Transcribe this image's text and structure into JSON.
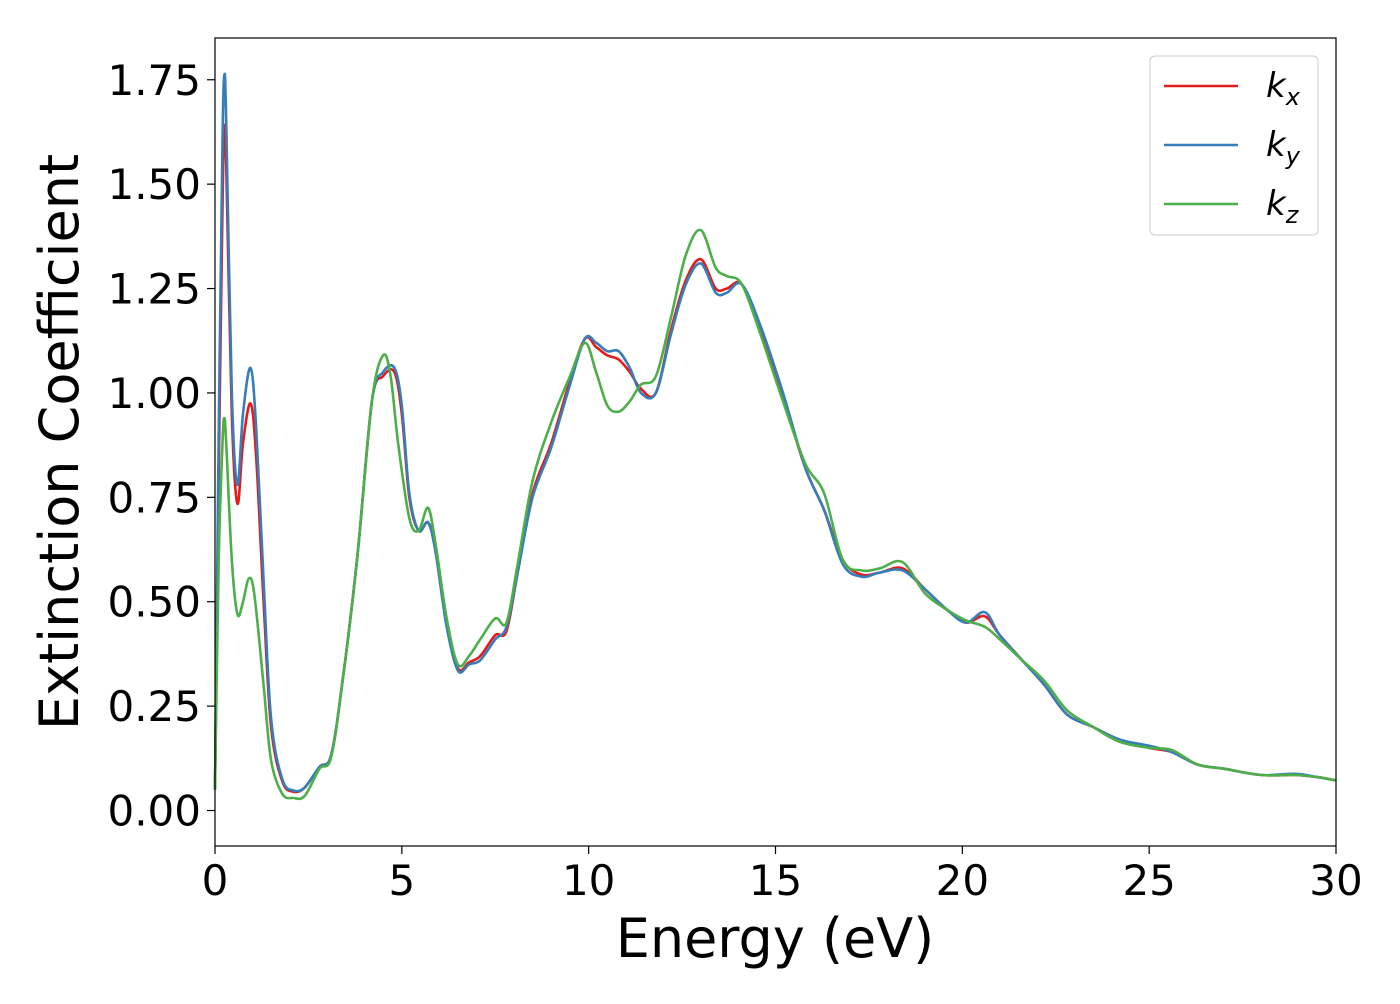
{
  "chart_data": {
    "type": "line",
    "title": "",
    "xlabel": "Energy (eV)",
    "ylabel": "Extinction Coefficient",
    "xlim": [
      0,
      30
    ],
    "ylim": [
      -0.085,
      1.85
    ],
    "x_ticks": [
      0,
      5,
      10,
      15,
      20,
      25,
      30
    ],
    "x_tick_labels": [
      "0",
      "5",
      "10",
      "15",
      "20",
      "25",
      "30"
    ],
    "y_ticks": [
      0.0,
      0.25,
      0.5,
      0.75,
      1.0,
      1.25,
      1.5,
      1.75
    ],
    "y_tick_labels": [
      "0.00",
      "0.25",
      "0.50",
      "0.75",
      "1.00",
      "1.25",
      "1.50",
      "1.75"
    ],
    "grid": false,
    "legend_position": "top-right",
    "series": [
      {
        "name": "k_x",
        "label_main": "k",
        "label_sub": "x",
        "color": "#e41a1c",
        "points": [
          [
            0,
            0.05
          ],
          [
            0.1,
            0.8
          ],
          [
            0.2,
            1.45
          ],
          [
            0.25,
            1.63
          ],
          [
            0.3,
            1.55
          ],
          [
            0.45,
            0.95
          ],
          [
            0.6,
            0.735
          ],
          [
            0.75,
            0.88
          ],
          [
            0.95,
            0.975
          ],
          [
            1.1,
            0.85
          ],
          [
            1.3,
            0.5
          ],
          [
            1.5,
            0.2
          ],
          [
            1.8,
            0.07
          ],
          [
            2.1,
            0.045
          ],
          [
            2.4,
            0.055
          ],
          [
            2.8,
            0.105
          ],
          [
            3.1,
            0.13
          ],
          [
            3.4,
            0.3
          ],
          [
            3.8,
            0.6
          ],
          [
            4.2,
            0.98
          ],
          [
            4.5,
            1.04
          ],
          [
            4.8,
            1.05
          ],
          [
            5.0,
            0.95
          ],
          [
            5.2,
            0.75
          ],
          [
            5.45,
            0.67
          ],
          [
            5.7,
            0.69
          ],
          [
            5.9,
            0.63
          ],
          [
            6.2,
            0.45
          ],
          [
            6.5,
            0.34
          ],
          [
            6.8,
            0.355
          ],
          [
            7.1,
            0.37
          ],
          [
            7.5,
            0.42
          ],
          [
            7.8,
            0.43
          ],
          [
            8.1,
            0.57
          ],
          [
            8.5,
            0.76
          ],
          [
            9.0,
            0.88
          ],
          [
            9.5,
            1.03
          ],
          [
            9.9,
            1.13
          ],
          [
            10.2,
            1.11
          ],
          [
            10.5,
            1.09
          ],
          [
            10.8,
            1.08
          ],
          [
            11.1,
            1.05
          ],
          [
            11.4,
            1.01
          ],
          [
            11.8,
            1.0
          ],
          [
            12.2,
            1.15
          ],
          [
            12.6,
            1.27
          ],
          [
            13.0,
            1.32
          ],
          [
            13.4,
            1.25
          ],
          [
            13.7,
            1.25
          ],
          [
            14.1,
            1.26
          ],
          [
            14.6,
            1.15
          ],
          [
            15.2,
            0.99
          ],
          [
            15.8,
            0.82
          ],
          [
            16.3,
            0.72
          ],
          [
            16.8,
            0.6
          ],
          [
            17.3,
            0.565
          ],
          [
            17.8,
            0.57
          ],
          [
            18.4,
            0.58
          ],
          [
            19.0,
            0.53
          ],
          [
            19.6,
            0.48
          ],
          [
            20.1,
            0.45
          ],
          [
            20.6,
            0.465
          ],
          [
            21.0,
            0.42
          ],
          [
            21.6,
            0.36
          ],
          [
            22.2,
            0.3
          ],
          [
            22.8,
            0.23
          ],
          [
            23.5,
            0.2
          ],
          [
            24.2,
            0.17
          ],
          [
            25.0,
            0.15
          ],
          [
            25.6,
            0.14
          ],
          [
            26.3,
            0.11
          ],
          [
            27.0,
            0.1
          ],
          [
            28.0,
            0.085
          ],
          [
            28.9,
            0.085
          ],
          [
            29.5,
            0.08
          ],
          [
            30,
            0.072
          ]
        ]
      },
      {
        "name": "k_y",
        "label_main": "k",
        "label_sub": "y",
        "color": "#377eb8",
        "points": [
          [
            0,
            0.05
          ],
          [
            0.1,
            0.9
          ],
          [
            0.2,
            1.6
          ],
          [
            0.25,
            1.76
          ],
          [
            0.3,
            1.65
          ],
          [
            0.45,
            1.0
          ],
          [
            0.6,
            0.78
          ],
          [
            0.75,
            0.95
          ],
          [
            0.95,
            1.06
          ],
          [
            1.1,
            0.92
          ],
          [
            1.3,
            0.55
          ],
          [
            1.5,
            0.22
          ],
          [
            1.8,
            0.075
          ],
          [
            2.1,
            0.048
          ],
          [
            2.4,
            0.055
          ],
          [
            2.8,
            0.105
          ],
          [
            3.1,
            0.13
          ],
          [
            3.4,
            0.3
          ],
          [
            3.8,
            0.6
          ],
          [
            4.2,
            0.98
          ],
          [
            4.5,
            1.05
          ],
          [
            4.8,
            1.06
          ],
          [
            5.0,
            0.97
          ],
          [
            5.2,
            0.76
          ],
          [
            5.45,
            0.67
          ],
          [
            5.7,
            0.69
          ],
          [
            5.9,
            0.62
          ],
          [
            6.2,
            0.44
          ],
          [
            6.5,
            0.335
          ],
          [
            6.8,
            0.35
          ],
          [
            7.1,
            0.36
          ],
          [
            7.5,
            0.41
          ],
          [
            7.8,
            0.44
          ],
          [
            8.1,
            0.57
          ],
          [
            8.5,
            0.75
          ],
          [
            9.0,
            0.87
          ],
          [
            9.5,
            1.02
          ],
          [
            9.9,
            1.13
          ],
          [
            10.2,
            1.12
          ],
          [
            10.5,
            1.1
          ],
          [
            10.8,
            1.1
          ],
          [
            11.1,
            1.06
          ],
          [
            11.4,
            1.0
          ],
          [
            11.8,
            1.0
          ],
          [
            12.2,
            1.14
          ],
          [
            12.6,
            1.26
          ],
          [
            13.0,
            1.31
          ],
          [
            13.4,
            1.24
          ],
          [
            13.7,
            1.24
          ],
          [
            14.1,
            1.26
          ],
          [
            14.6,
            1.16
          ],
          [
            15.2,
            1.0
          ],
          [
            15.8,
            0.82
          ],
          [
            16.3,
            0.72
          ],
          [
            16.8,
            0.59
          ],
          [
            17.3,
            0.56
          ],
          [
            17.8,
            0.57
          ],
          [
            18.4,
            0.575
          ],
          [
            19.0,
            0.53
          ],
          [
            19.6,
            0.48
          ],
          [
            20.1,
            0.45
          ],
          [
            20.6,
            0.475
          ],
          [
            21.0,
            0.42
          ],
          [
            21.6,
            0.36
          ],
          [
            22.2,
            0.3
          ],
          [
            22.8,
            0.23
          ],
          [
            23.5,
            0.2
          ],
          [
            24.2,
            0.17
          ],
          [
            25.0,
            0.155
          ],
          [
            25.6,
            0.14
          ],
          [
            26.3,
            0.11
          ],
          [
            27.0,
            0.1
          ],
          [
            28.0,
            0.085
          ],
          [
            28.9,
            0.088
          ],
          [
            29.5,
            0.08
          ],
          [
            30,
            0.072
          ]
        ]
      },
      {
        "name": "k_z",
        "label_main": "k",
        "label_sub": "z",
        "color": "#4daf4a",
        "points": [
          [
            0,
            0.05
          ],
          [
            0.1,
            0.6
          ],
          [
            0.2,
            0.88
          ],
          [
            0.25,
            0.94
          ],
          [
            0.3,
            0.88
          ],
          [
            0.45,
            0.6
          ],
          [
            0.6,
            0.47
          ],
          [
            0.75,
            0.5
          ],
          [
            0.9,
            0.555
          ],
          [
            1.05,
            0.52
          ],
          [
            1.3,
            0.3
          ],
          [
            1.5,
            0.12
          ],
          [
            1.8,
            0.04
          ],
          [
            2.1,
            0.03
          ],
          [
            2.4,
            0.035
          ],
          [
            2.8,
            0.1
          ],
          [
            3.1,
            0.125
          ],
          [
            3.4,
            0.3
          ],
          [
            3.8,
            0.6
          ],
          [
            4.2,
            0.98
          ],
          [
            4.5,
            1.09
          ],
          [
            4.7,
            1.04
          ],
          [
            4.9,
            0.88
          ],
          [
            5.2,
            0.7
          ],
          [
            5.45,
            0.67
          ],
          [
            5.7,
            0.725
          ],
          [
            5.9,
            0.64
          ],
          [
            6.2,
            0.46
          ],
          [
            6.5,
            0.35
          ],
          [
            6.8,
            0.37
          ],
          [
            7.1,
            0.41
          ],
          [
            7.5,
            0.46
          ],
          [
            7.8,
            0.45
          ],
          [
            8.1,
            0.59
          ],
          [
            8.5,
            0.79
          ],
          [
            9.0,
            0.93
          ],
          [
            9.5,
            1.04
          ],
          [
            9.9,
            1.12
          ],
          [
            10.2,
            1.05
          ],
          [
            10.5,
            0.97
          ],
          [
            10.8,
            0.955
          ],
          [
            11.1,
            0.98
          ],
          [
            11.4,
            1.02
          ],
          [
            11.8,
            1.04
          ],
          [
            12.2,
            1.18
          ],
          [
            12.6,
            1.33
          ],
          [
            13.0,
            1.39
          ],
          [
            13.4,
            1.3
          ],
          [
            13.7,
            1.28
          ],
          [
            14.1,
            1.26
          ],
          [
            14.6,
            1.14
          ],
          [
            15.2,
            0.98
          ],
          [
            15.8,
            0.83
          ],
          [
            16.3,
            0.76
          ],
          [
            16.8,
            0.6
          ],
          [
            17.3,
            0.575
          ],
          [
            17.8,
            0.58
          ],
          [
            18.4,
            0.595
          ],
          [
            19.0,
            0.52
          ],
          [
            19.6,
            0.48
          ],
          [
            20.1,
            0.455
          ],
          [
            20.6,
            0.44
          ],
          [
            21.0,
            0.41
          ],
          [
            21.6,
            0.36
          ],
          [
            22.2,
            0.31
          ],
          [
            22.8,
            0.24
          ],
          [
            23.5,
            0.2
          ],
          [
            24.2,
            0.165
          ],
          [
            25.0,
            0.15
          ],
          [
            25.6,
            0.145
          ],
          [
            26.3,
            0.11
          ],
          [
            27.0,
            0.1
          ],
          [
            28.0,
            0.085
          ],
          [
            28.9,
            0.085
          ],
          [
            29.5,
            0.08
          ],
          [
            30,
            0.072
          ]
        ]
      }
    ]
  }
}
